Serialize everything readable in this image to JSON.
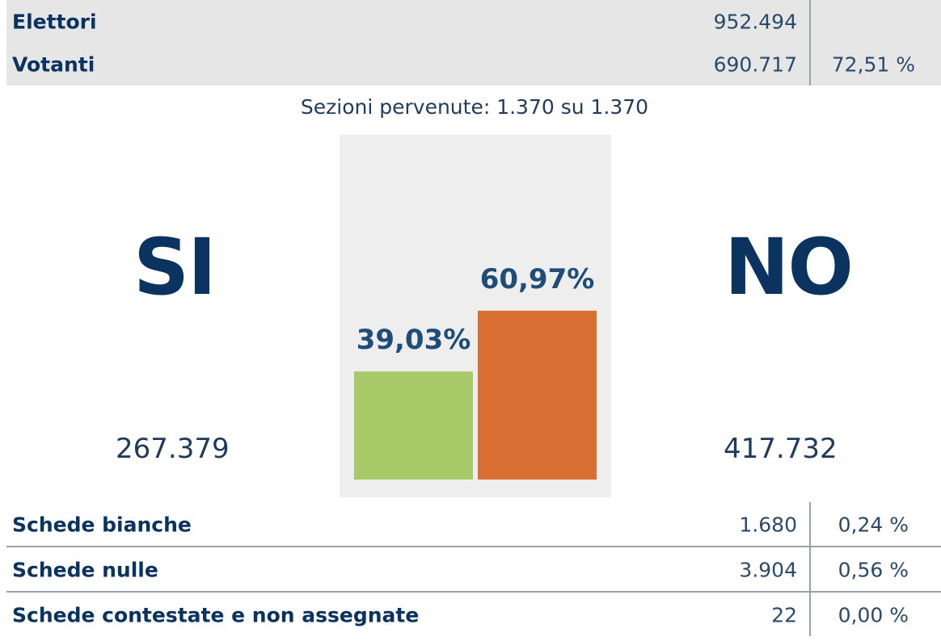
{
  "summary": {
    "rows": [
      {
        "label": "Elettori",
        "value": "952.494",
        "percent": ""
      },
      {
        "label": "Votanti",
        "value": "690.717",
        "percent": "72,51 %"
      }
    ]
  },
  "sections": {
    "text": "Sezioni pervenute: 1.370 su 1.370"
  },
  "result": {
    "yes": {
      "label": "SI",
      "count": "267.379",
      "percent_label": "39,03%"
    },
    "no": {
      "label": "NO",
      "count": "417.732",
      "percent_label": "60,97%"
    }
  },
  "colors": {
    "yes_bar": "#a8c967",
    "no_bar": "#d96f33",
    "text_dark": "#0b3360",
    "panel_bg": "#eeeeee"
  },
  "chart_data": {
    "type": "bar",
    "categories": [
      "SI",
      "NO"
    ],
    "values": [
      39.03,
      60.97
    ],
    "ylim": [
      0,
      100
    ]
  },
  "ballots": {
    "rows": [
      {
        "label": "Schede bianche",
        "value": "1.680",
        "percent": "0,24 %"
      },
      {
        "label": "Schede nulle",
        "value": "3.904",
        "percent": "0,56 %"
      },
      {
        "label": "Schede contestate e non assegnate",
        "value": "22",
        "percent": "0,00 %"
      }
    ]
  }
}
